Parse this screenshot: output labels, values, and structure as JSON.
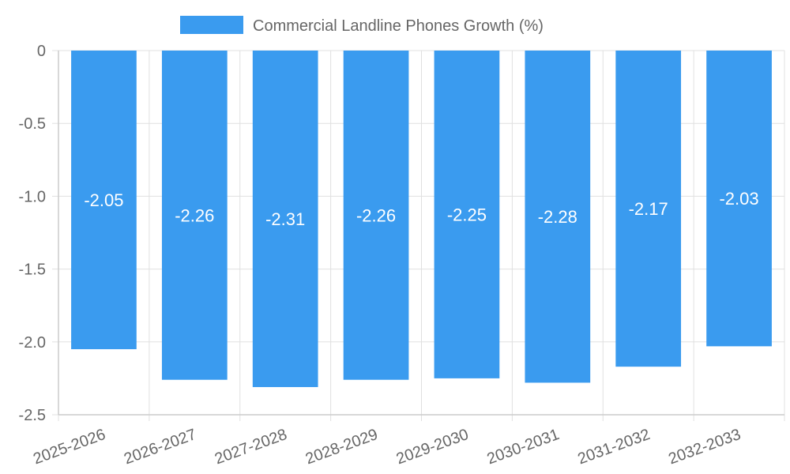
{
  "chart_data": {
    "type": "bar",
    "categories": [
      "2025-2026",
      "2026-2027",
      "2027-2028",
      "2028-2029",
      "2029-2030",
      "2030-2031",
      "2031-2032",
      "2032-2033"
    ],
    "series": [
      {
        "name": "Commercial Landline Phones Growth (%)",
        "values": [
          -2.05,
          -2.26,
          -2.31,
          -2.26,
          -2.25,
          -2.28,
          -2.17,
          -2.03
        ]
      }
    ],
    "data_labels": [
      "-2.05",
      "-2.26",
      "-2.31",
      "-2.26",
      "-2.25",
      "-2.28",
      "-2.17",
      "-2.03"
    ],
    "y_ticks": [
      "0",
      "-0.5",
      "-1.0",
      "-1.5",
      "-2.0",
      "-2.5"
    ],
    "ylim": [
      -2.5,
      0
    ],
    "grid": true,
    "legend_position": "top",
    "colors": {
      "bar": "#3a9bef"
    }
  }
}
